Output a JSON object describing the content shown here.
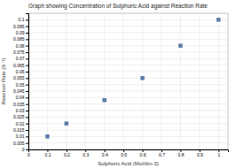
{
  "chart_data": {
    "type": "scatter",
    "title": "Graph showing Concentration of Sulphuric Acid against Reaction Rate",
    "x_label": "Sulphuric Acid (Mol/dm-3)",
    "y_label": "Reaction Rate (S⁻¹)",
    "x": [
      0.1,
      0.2,
      0.4,
      0.6,
      0.8,
      1.0
    ],
    "values": [
      0.01,
      0.02,
      0.038,
      0.055,
      0.08,
      0.1
    ],
    "xlim": [
      0,
      1.05
    ],
    "ylim": [
      0,
      0.105
    ],
    "xticks": [
      0,
      0.1,
      0.2,
      0.3,
      0.4,
      0.5,
      0.6,
      0.7,
      0.8,
      0.9,
      1
    ],
    "yticks": [
      0,
      0.005,
      0.01,
      0.015,
      0.02,
      0.025,
      0.03,
      0.035,
      0.04,
      0.045,
      0.05,
      0.055,
      0.06,
      0.065,
      0.07,
      0.075,
      0.08,
      0.085,
      0.09,
      0.095,
      0.1
    ],
    "color": "#5a7baa",
    "marker": "square",
    "grid": true
  }
}
